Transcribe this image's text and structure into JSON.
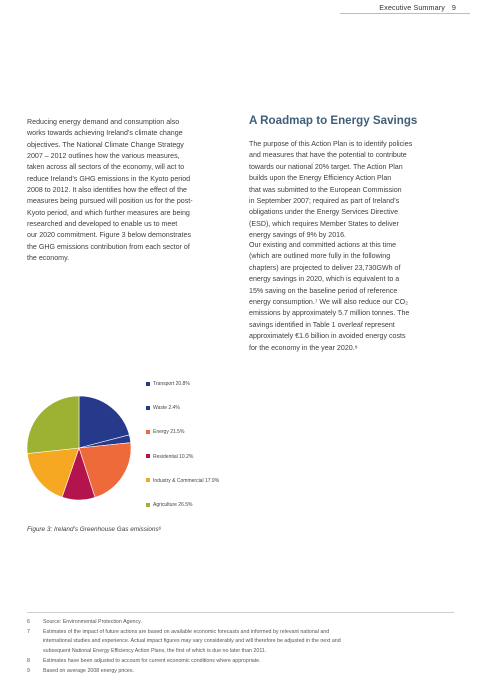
{
  "header": {
    "section": "Executive Summary",
    "page_number": "9"
  },
  "left_column": {
    "lines": [
      "Reducing energy demand and consumption also",
      "works towards achieving Ireland’s climate change",
      "objectives. The National Climate Change Strategy",
      "2007 – 2012 outlines how the various measures,",
      "taken across all sectors of the economy, will act to",
      "reduce Ireland’s GHG emissions in the Kyoto period",
      "2008 to 2012. It also identifies how the effect of the",
      "measures being pursued will position us for the post-",
      "Kyoto period, and which further measures are being",
      "researched and developed to enable us to meet",
      "our 2020 commitment. Figure 3 below demonstrates",
      "the GHG emissions contribution from each sector of",
      "the economy."
    ]
  },
  "right_column": {
    "title": "A Roadmap to Energy Savings",
    "para1": [
      "The purpose of this Action Plan is to identify policies",
      "and measures that have the potential to contribute",
      "towards our national 20% target. The Action Plan",
      "builds upon the Energy Efficiency Action Plan",
      "that was submitted to the European Commission",
      "in September 2007; required as part of Ireland’s",
      "obligations under the Energy Services Directive",
      "(ESD), which requires Member States to deliver",
      "energy savings of 9% by 2016."
    ],
    "para2": [
      "Our existing and committed actions at this time",
      "(which are outlined more fully in the following",
      "chapters) are projected to deliver 23,730GWh of",
      "energy savings in 2020, which is equivalent to a",
      "15% saving on the baseline period of reference",
      "energy consumption.⁷ We will also reduce our CO₂",
      "emissions by approximately 5.7 million tonnes. The",
      "savings identified in Table 1 overleaf represent",
      "approximately €1.6 billion in avoided energy costs",
      "for the economy in the year 2020.⁸"
    ]
  },
  "chart_data": {
    "type": "pie",
    "title": "",
    "slices": [
      {
        "label": "Transport",
        "value": 20.8,
        "display": "20.8%",
        "color": "#27398a"
      },
      {
        "label": "Waste",
        "value": 2.4,
        "display": "2.4%",
        "color": "#27398a"
      },
      {
        "label": "Energy",
        "value": 21.5,
        "display": "21.5%",
        "color": "#ef6a3a"
      },
      {
        "label": "Residential",
        "value": 10.2,
        "display": "10.2%",
        "color": "#b3144e"
      },
      {
        "label": "Industry & Commercial",
        "value": 17.9,
        "display": "17.9%",
        "color": "#f7a823"
      },
      {
        "label": "Agriculture",
        "value": 26.5,
        "display": "26.5%",
        "color": "#9db232"
      }
    ],
    "legend_position": "right"
  },
  "figure_caption": "Figure 3: Ireland’s Greenhouse Gas emissions⁶",
  "footnotes": [
    {
      "n": "6",
      "lines": [
        "Source: Environmental Protection Agency."
      ]
    },
    {
      "n": "7",
      "lines": [
        "Estimates of the impact of future actions are based on available economic forecasts and informed by relevant national and",
        "international studies and experience. Actual impact figures may vary considerably and will therefore be adjusted in the next and",
        "subsequent National Energy Efficiency Action Plans, the first of which is due no later than 2011."
      ]
    },
    {
      "n": "8",
      "lines": [
        "Estimates have been adjusted to account for current economic conditions where appropriate."
      ]
    },
    {
      "n": "9",
      "lines": [
        "Based on average 2008 energy prices."
      ]
    }
  ]
}
